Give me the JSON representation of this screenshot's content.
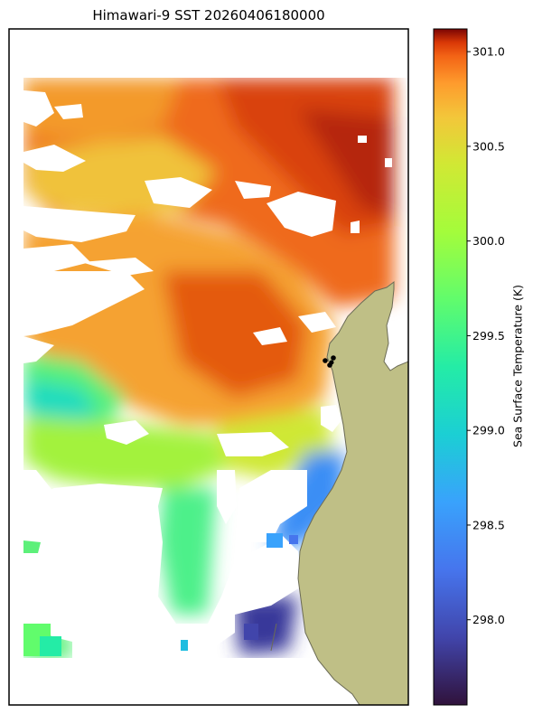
{
  "title": "Himawari-9 SST 20260406180000",
  "colorbar": {
    "label": "Sea Surface Temperature (K)",
    "vmin": 297.55,
    "vmax": 301.12,
    "colormap": "turbo",
    "ticks": [
      {
        "value": 298.0,
        "label": "298.0"
      },
      {
        "value": 298.5,
        "label": "298.5"
      },
      {
        "value": 299.0,
        "label": "299.0"
      },
      {
        "value": 299.5,
        "label": "299.5"
      },
      {
        "value": 300.0,
        "label": "300.0"
      },
      {
        "value": 300.5,
        "label": "300.5"
      },
      {
        "value": 301.0,
        "label": "301.0"
      }
    ]
  },
  "colors": {
    "land": "#bfbf86",
    "coast": "#6b6b55",
    "no_data": "#ffffff",
    "frame": "#000000",
    "markers": "#000000"
  }
}
